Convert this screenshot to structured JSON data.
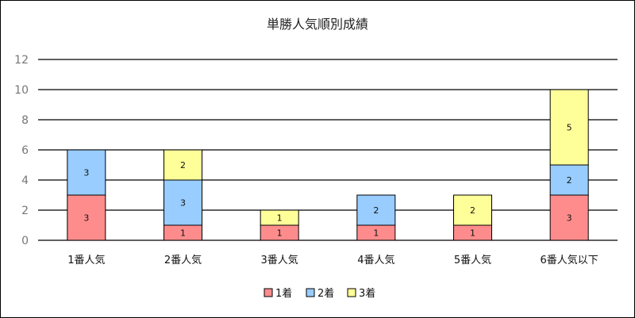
{
  "chart_data": {
    "type": "bar",
    "stacked": true,
    "title": "単勝人気順別成績",
    "categories": [
      "1番人気",
      "2番人気",
      "3番人気",
      "4番人気",
      "5番人気",
      "6番人気以下"
    ],
    "series": [
      {
        "name": "1着",
        "color": "#ff8c8c",
        "values": [
          3,
          1,
          1,
          1,
          1,
          3
        ]
      },
      {
        "name": "2着",
        "color": "#99ccff",
        "values": [
          3,
          3,
          0,
          2,
          0,
          2
        ]
      },
      {
        "name": "3着",
        "color": "#ffff99",
        "values": [
          0,
          2,
          1,
          0,
          2,
          5
        ]
      }
    ],
    "ylim": [
      0,
      12
    ],
    "yticks": [
      0,
      2,
      4,
      6,
      8,
      10,
      12
    ],
    "grid": true,
    "legend_position": "bottom"
  }
}
